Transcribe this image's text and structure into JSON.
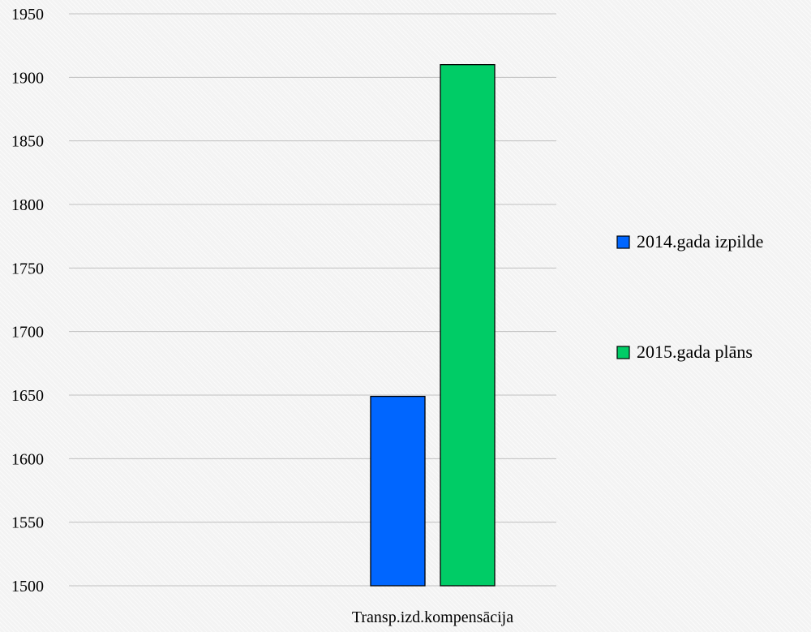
{
  "chart_data": {
    "type": "bar",
    "title": "",
    "xlabel": "",
    "ylabel": "",
    "categories": [
      "Transp.izd.kompensācija"
    ],
    "series": [
      {
        "name": "2014.gada izpilde",
        "color": "#0066ff",
        "values": [
          1649
        ]
      },
      {
        "name": "2015.gada plāns",
        "color": "#00cc66",
        "values": [
          1910
        ]
      }
    ],
    "ylim": [
      1500,
      1950
    ],
    "yticks": [
      1500,
      1550,
      1600,
      1650,
      1700,
      1750,
      1800,
      1850,
      1900,
      1950
    ],
    "grid": true,
    "legend_position": "right"
  }
}
